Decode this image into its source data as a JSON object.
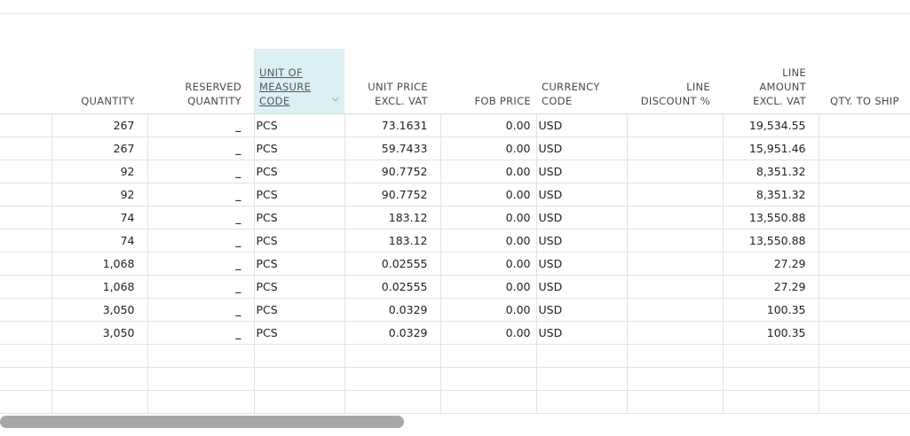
{
  "columns": {
    "quantity": "QUANTITY",
    "reserved_quantity": [
      "RESERVED",
      "QUANTITY"
    ],
    "unit_of_measure_code": [
      "UNIT OF",
      "MEASURE",
      "CODE"
    ],
    "unit_price": [
      "UNIT PRICE",
      "EXCL. VAT"
    ],
    "fob_price": "FOB PRICE",
    "currency_code": [
      "CURRENCY",
      "CODE"
    ],
    "line_discount": [
      "LINE",
      "DISCOUNT %"
    ],
    "line_amount": [
      "LINE",
      "AMOUNT",
      "EXCL. VAT"
    ],
    "qty_to_ship": "QTY. TO SHIP"
  },
  "rows": [
    {
      "quantity": "267",
      "reserved": "_",
      "uom": "PCS",
      "unit_price": "73.1631",
      "fob": "0.00",
      "currency": "USD",
      "discount": "",
      "amount": "19,534.55",
      "qty_ship": ""
    },
    {
      "quantity": "267",
      "reserved": "_",
      "uom": "PCS",
      "unit_price": "59.7433",
      "fob": "0.00",
      "currency": "USD",
      "discount": "",
      "amount": "15,951.46",
      "qty_ship": ""
    },
    {
      "quantity": "92",
      "reserved": "_",
      "uom": "PCS",
      "unit_price": "90.7752",
      "fob": "0.00",
      "currency": "USD",
      "discount": "",
      "amount": "8,351.32",
      "qty_ship": ""
    },
    {
      "quantity": "92",
      "reserved": "_",
      "uom": "PCS",
      "unit_price": "90.7752",
      "fob": "0.00",
      "currency": "USD",
      "discount": "",
      "amount": "8,351.32",
      "qty_ship": ""
    },
    {
      "quantity": "74",
      "reserved": "_",
      "uom": "PCS",
      "unit_price": "183.12",
      "fob": "0.00",
      "currency": "USD",
      "discount": "",
      "amount": "13,550.88",
      "qty_ship": ""
    },
    {
      "quantity": "74",
      "reserved": "_",
      "uom": "PCS",
      "unit_price": "183.12",
      "fob": "0.00",
      "currency": "USD",
      "discount": "",
      "amount": "13,550.88",
      "qty_ship": ""
    },
    {
      "quantity": "1,068",
      "reserved": "_",
      "uom": "PCS",
      "unit_price": "0.02555",
      "fob": "0.00",
      "currency": "USD",
      "discount": "",
      "amount": "27.29",
      "qty_ship": ""
    },
    {
      "quantity": "1,068",
      "reserved": "_",
      "uom": "PCS",
      "unit_price": "0.02555",
      "fob": "0.00",
      "currency": "USD",
      "discount": "",
      "amount": "27.29",
      "qty_ship": ""
    },
    {
      "quantity": "3,050",
      "reserved": "_",
      "uom": "PCS",
      "unit_price": "0.0329",
      "fob": "0.00",
      "currency": "USD",
      "discount": "",
      "amount": "100.35",
      "qty_ship": ""
    },
    {
      "quantity": "3,050",
      "reserved": "_",
      "uom": "PCS",
      "unit_price": "0.0329",
      "fob": "0.00",
      "currency": "USD",
      "discount": "",
      "amount": "100.35",
      "qty_ship": ""
    }
  ],
  "empty_rows": 3,
  "icons": {
    "sort_dropdown": "chevron-down-icon"
  },
  "colors": {
    "selected_header_bg": "#dcf0f4",
    "scrollbar": "#a8a8a8"
  }
}
